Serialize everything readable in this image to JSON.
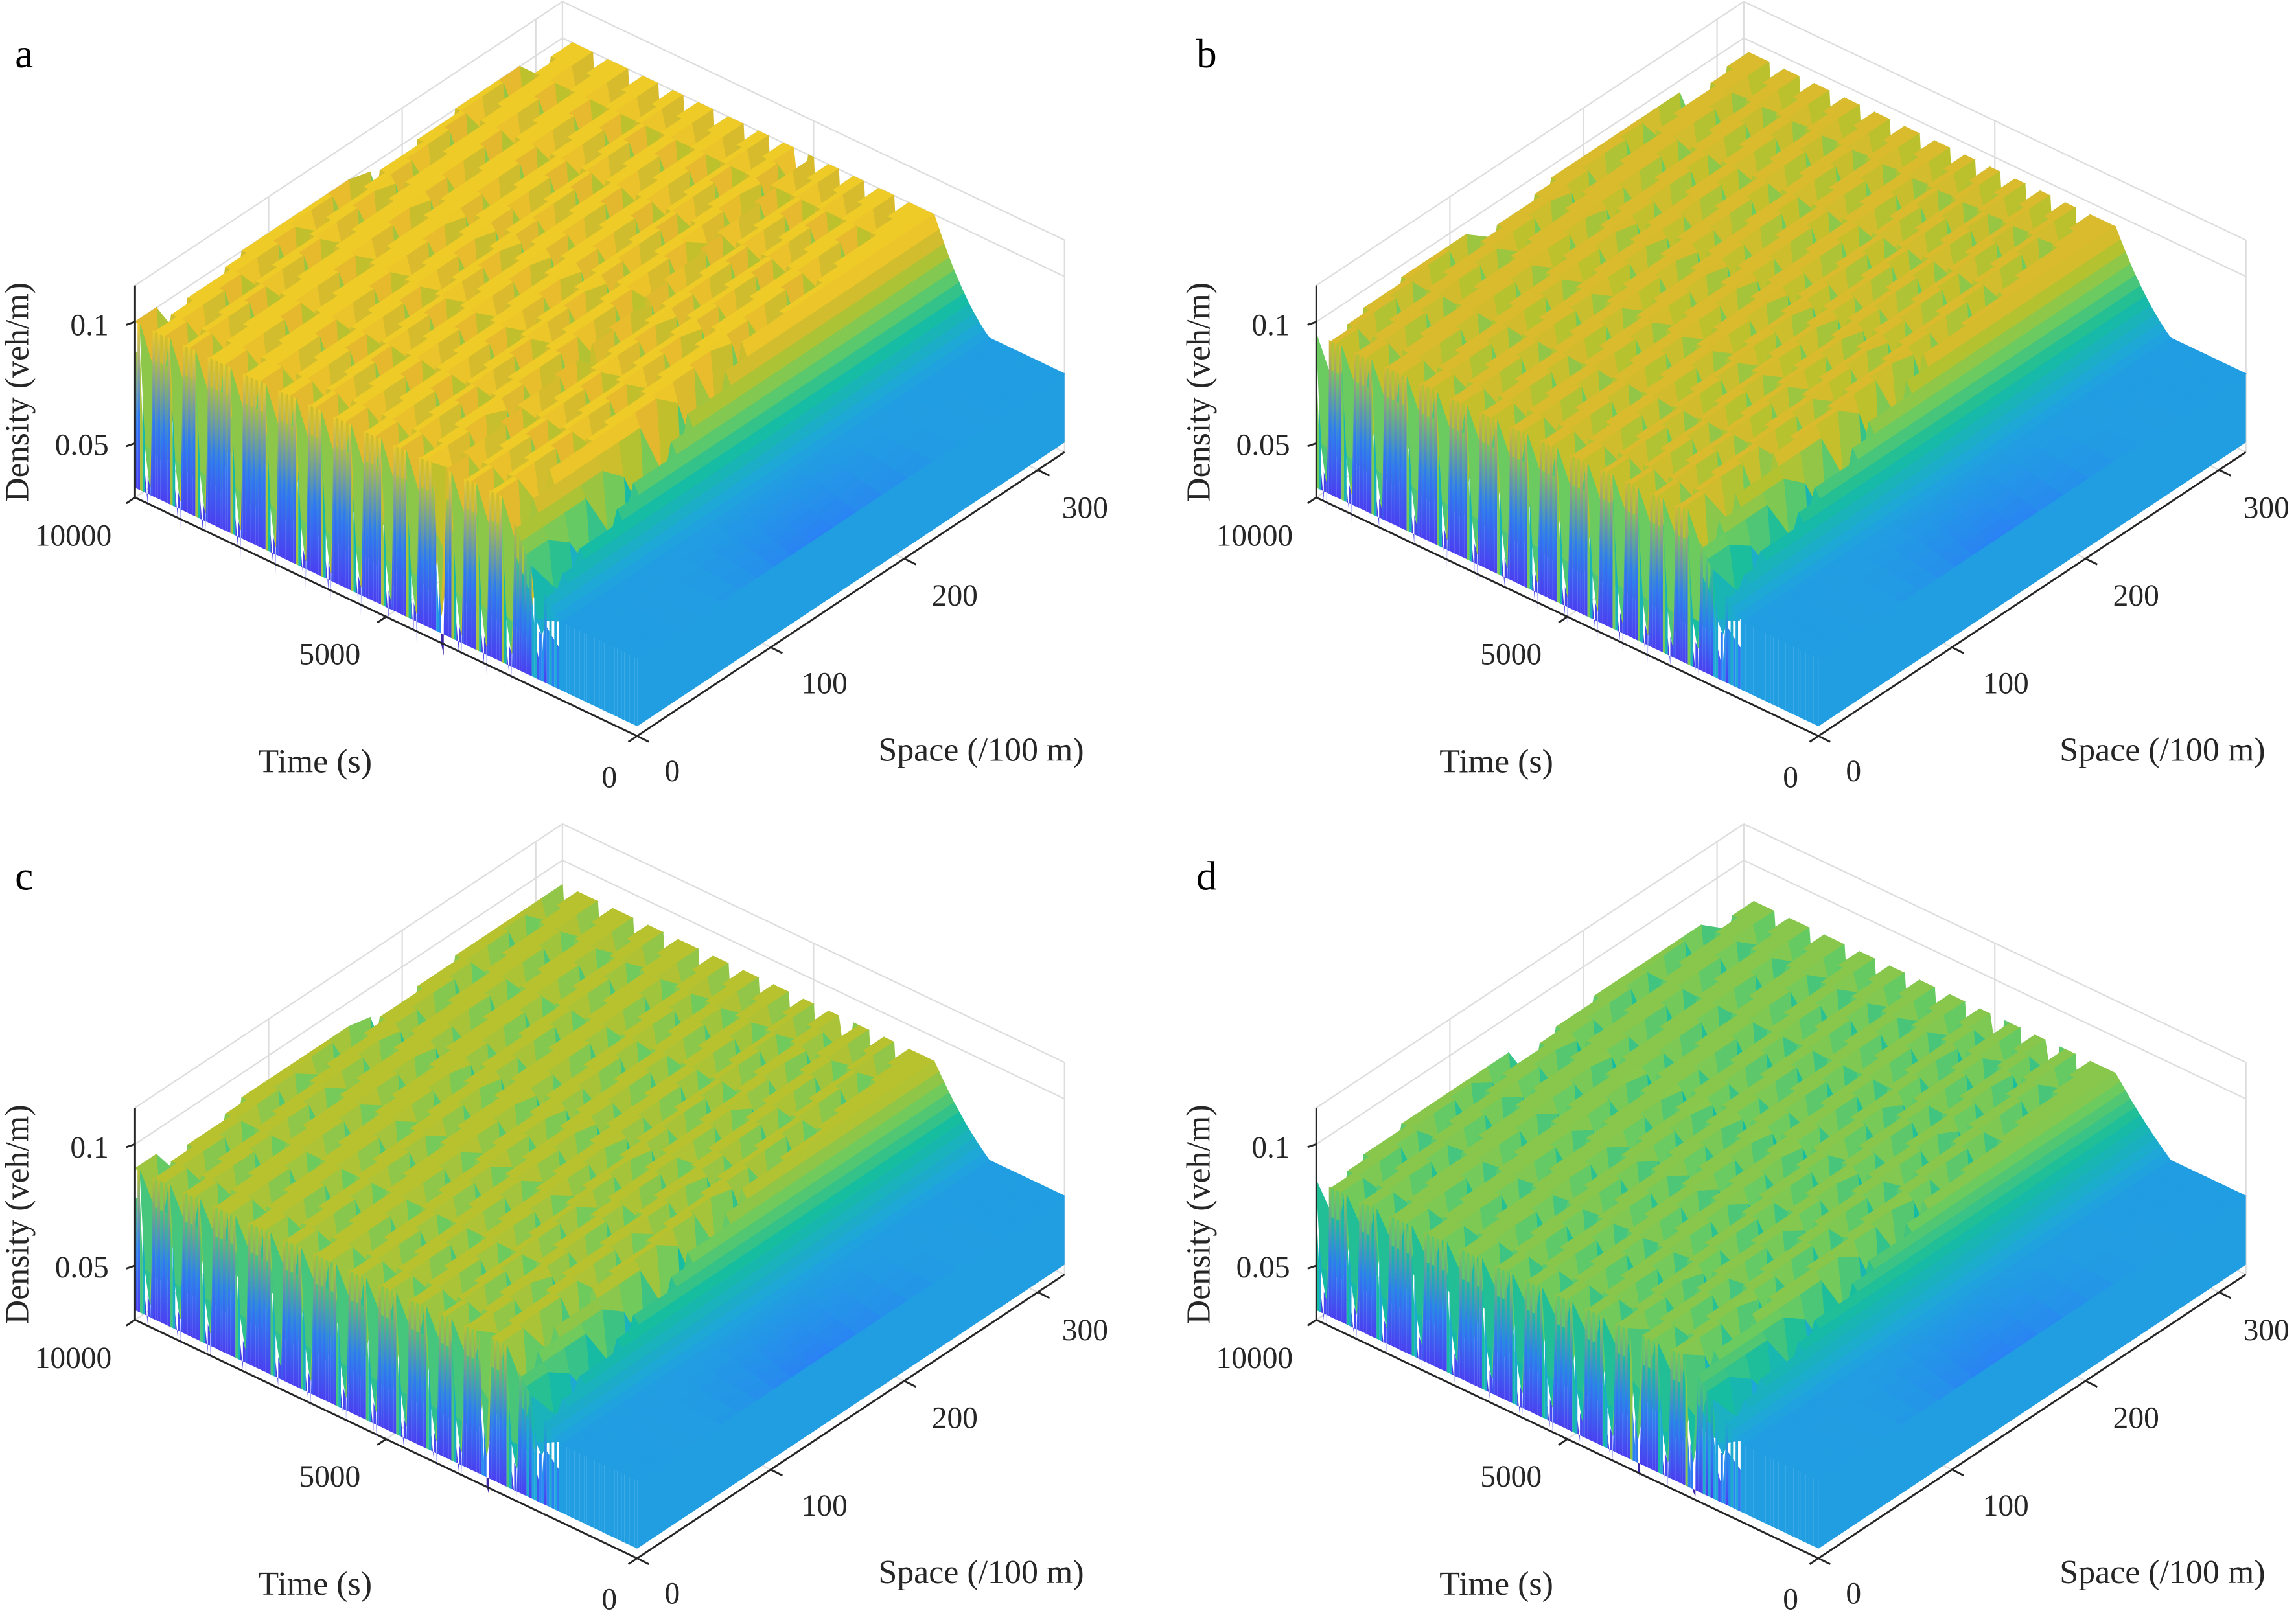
{
  "chart_data": [
    {
      "type": "surface",
      "panel": "a",
      "xlabel": "Space (/100 m)",
      "ylabel": "Time (s)",
      "zlabel": "Density (veh/m)",
      "xticks": [
        "0",
        "100",
        "200",
        "300"
      ],
      "yticks": [
        "0",
        "5000",
        "10000"
      ],
      "zticks": [
        "0.05",
        "0.1"
      ],
      "xlim": [
        0,
        320
      ],
      "ylim": [
        0,
        10000
      ],
      "zlim": [
        0.028,
        0.115
      ],
      "grid": true,
      "colormap": "parula",
      "peak_density": 0.1,
      "trough_density": 0.035,
      "initial_density": 0.06,
      "jam_gap_times": [
        1900,
        2500,
        3000,
        3500,
        3850,
        4400,
        4900,
        5500,
        6100,
        6600,
        7200,
        7900,
        8600,
        9100,
        9700
      ]
    },
    {
      "type": "surface",
      "panel": "b",
      "xlabel": "Space (/100 m)",
      "ylabel": "Time (s)",
      "zlabel": "Density (veh/m)",
      "xticks": [
        "0",
        "100",
        "200",
        "300"
      ],
      "yticks": [
        "0",
        "5000",
        "10000"
      ],
      "zticks": [
        "0.05",
        "0.1"
      ],
      "xlim": [
        0,
        320
      ],
      "ylim": [
        0,
        10000
      ],
      "zlim": [
        0.028,
        0.115
      ],
      "grid": true,
      "colormap": "parula",
      "peak_density": 0.095,
      "trough_density": 0.036,
      "initial_density": 0.06,
      "jam_gap_times": [
        1900,
        2400,
        2900,
        3400,
        3900,
        4400,
        5000,
        5600,
        6200,
        6800,
        7400,
        8000,
        8700,
        9300,
        9800
      ]
    },
    {
      "type": "surface",
      "panel": "c",
      "xlabel": "Space (/100 m)",
      "ylabel": "Time (s)",
      "zlabel": "Density (veh/m)",
      "xticks": [
        "0",
        "100",
        "200",
        "300"
      ],
      "yticks": [
        "0",
        "5000",
        "10000"
      ],
      "zticks": [
        "0.05",
        "0.1"
      ],
      "xlim": [
        0,
        320
      ],
      "ylim": [
        0,
        10000
      ],
      "zlim": [
        0.028,
        0.115
      ],
      "grid": true,
      "colormap": "parula",
      "peak_density": 0.09,
      "trough_density": 0.037,
      "initial_density": 0.06,
      "jam_gap_times": [
        1900,
        2400,
        2950,
        3500,
        4000,
        4600,
        5200,
        5800,
        6500,
        7100,
        7800,
        8500,
        9100,
        9700
      ]
    },
    {
      "type": "surface",
      "panel": "d",
      "xlabel": "Space (/100 m)",
      "ylabel": "Time (s)",
      "zlabel": "Density (veh/m)",
      "xticks": [
        "0",
        "100",
        "200",
        "300"
      ],
      "yticks": [
        "0",
        "5000",
        "10000"
      ],
      "zticks": [
        "0.05",
        "0.1"
      ],
      "xlim": [
        0,
        320
      ],
      "ylim": [
        0,
        10000
      ],
      "zlim": [
        0.028,
        0.115
      ],
      "grid": true,
      "colormap": "parula",
      "peak_density": 0.085,
      "trough_density": 0.038,
      "initial_density": 0.06,
      "jam_gap_times": [
        1900,
        2450,
        3000,
        3550,
        4100,
        4700,
        5300,
        5900,
        6500,
        7200,
        7900,
        8600,
        9200,
        9800
      ]
    }
  ],
  "colors": {
    "axis": "#262626",
    "grid": "#dddddd",
    "colormap": [
      [
        0,
        "#3e26a8"
      ],
      [
        0.15,
        "#4749f2"
      ],
      [
        0.3,
        "#2a82f4"
      ],
      [
        0.45,
        "#1fa5dd"
      ],
      [
        0.6,
        "#16bda0"
      ],
      [
        0.72,
        "#6ccb5f"
      ],
      [
        0.84,
        "#bcc12c"
      ],
      [
        0.93,
        "#e6b82e"
      ],
      [
        1,
        "#f5d824"
      ]
    ]
  }
}
